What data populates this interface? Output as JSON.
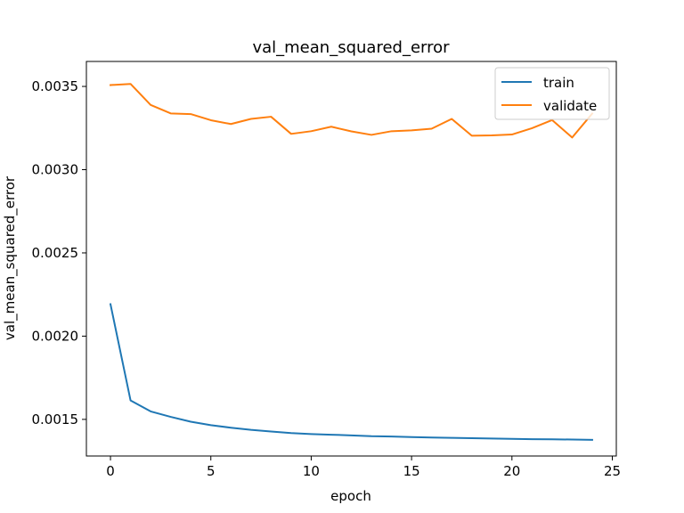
{
  "chart_data": {
    "type": "line",
    "title": "val_mean_squared_error",
    "xlabel": "epoch",
    "ylabel": "val_mean_squared_error",
    "xlim": [
      -1.2,
      25.2
    ],
    "ylim": [
      0.00128,
      0.00365
    ],
    "xticks": [
      0,
      5,
      10,
      15,
      20,
      25
    ],
    "xtick_labels": [
      "0",
      "5",
      "10",
      "15",
      "20",
      "25"
    ],
    "yticks": [
      0.0015,
      0.002,
      0.0025,
      0.003,
      0.0035
    ],
    "ytick_labels": [
      "0.0015",
      "0.0020",
      "0.0025",
      "0.0030",
      "0.0035"
    ],
    "grid": false,
    "legend_position": "top-right",
    "x": [
      0,
      1,
      2,
      3,
      4,
      5,
      6,
      7,
      8,
      9,
      10,
      11,
      12,
      13,
      14,
      15,
      16,
      17,
      18,
      19,
      20,
      21,
      22,
      23,
      24
    ],
    "series": [
      {
        "name": "train",
        "color": "#1f77b4",
        "values": [
          0.002192,
          0.001614,
          0.001548,
          0.001515,
          0.001486,
          0.001465,
          0.00145,
          0.001437,
          0.001427,
          0.001418,
          0.001412,
          0.001408,
          0.001404,
          0.001399,
          0.001397,
          0.001394,
          0.001391,
          0.001389,
          0.001387,
          0.001385,
          0.001383,
          0.001381,
          0.00138,
          0.001379,
          0.001377
        ]
      },
      {
        "name": "validate",
        "color": "#ff7f0e",
        "values": [
          0.003508,
          0.003515,
          0.003389,
          0.003338,
          0.003334,
          0.003297,
          0.003274,
          0.003305,
          0.003318,
          0.003215,
          0.003231,
          0.003258,
          0.00323,
          0.003209,
          0.003231,
          0.003236,
          0.003246,
          0.003305,
          0.003204,
          0.003206,
          0.003211,
          0.003249,
          0.003298,
          0.003193,
          0.003337
        ]
      }
    ]
  }
}
